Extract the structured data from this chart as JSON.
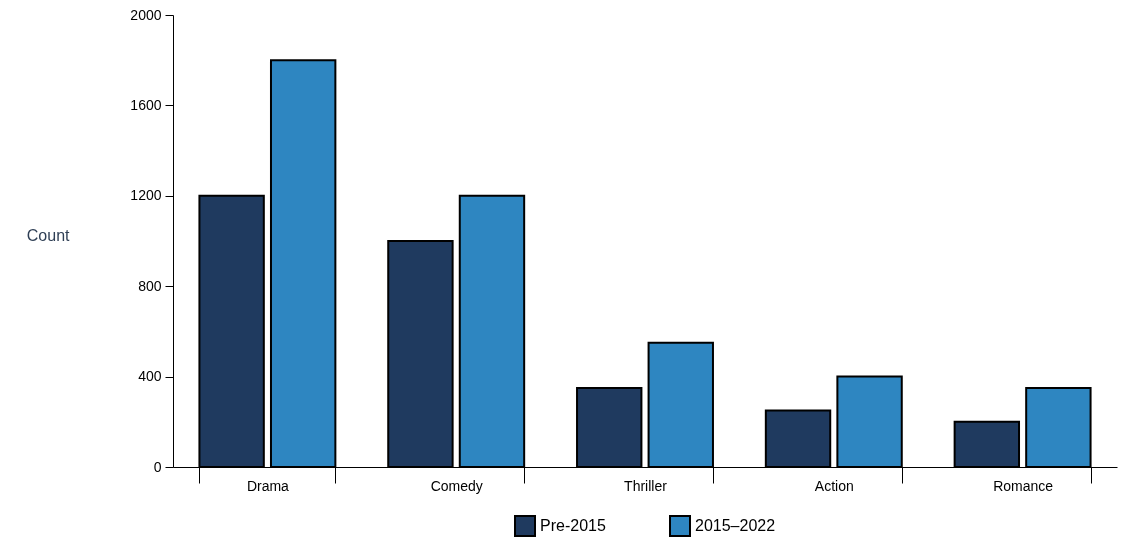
{
  "chart_data": {
    "type": "bar",
    "ylabel": "Count",
    "categories": [
      "Drama",
      "Comedy",
      "Thriller",
      "Action",
      "Romance"
    ],
    "series": [
      {
        "name": "Pre-2015",
        "color": "#1f3a5f",
        "values": [
          1200,
          1000,
          350,
          250,
          200
        ]
      },
      {
        "name": "2015–2022",
        "color": "#2e86c1",
        "values": [
          1800,
          1200,
          550,
          400,
          350
        ]
      }
    ],
    "ylim": [
      0,
      2000
    ],
    "yticks": [
      0,
      400,
      800,
      1200,
      1600,
      2000
    ],
    "grid": false,
    "legend": "bottom"
  }
}
